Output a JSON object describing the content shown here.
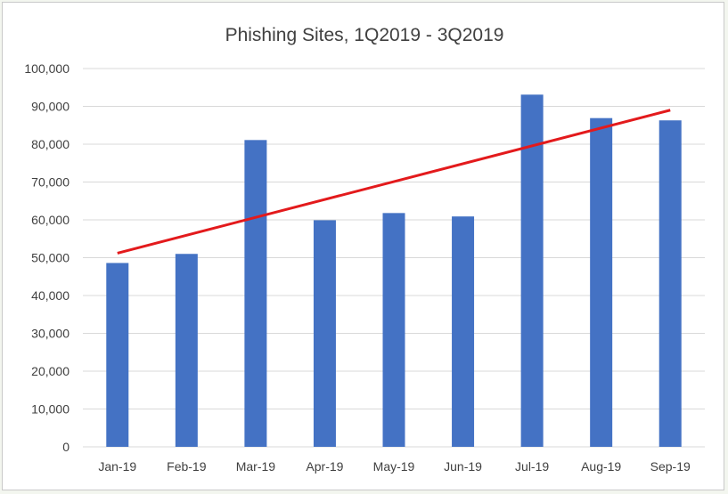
{
  "chart_data": {
    "type": "bar",
    "title": "Phishing Sites, 1Q2019 - 3Q2019",
    "xlabel": "",
    "ylabel": "",
    "categories": [
      "Jan-19",
      "Feb-19",
      "Mar-19",
      "Apr-19",
      "May-19",
      "Jun-19",
      "Jul-19",
      "Aug-19",
      "Sep-19"
    ],
    "values": [
      48600,
      51000,
      81100,
      59900,
      61800,
      60900,
      93100,
      86900,
      86300
    ],
    "ylim": [
      0,
      100000
    ],
    "yticks": [
      "0",
      "10,000",
      "20,000",
      "30,000",
      "40,000",
      "50,000",
      "60,000",
      "70,000",
      "80,000",
      "90,000",
      "100,000"
    ],
    "grid": true,
    "legend": "none",
    "trendline": {
      "type": "linear",
      "start": 51200,
      "end": 89000
    },
    "colors": {
      "bar": "#4472c4",
      "trendline": "#e31a1c",
      "grid": "#d9d9d9",
      "text": "#404040"
    }
  }
}
